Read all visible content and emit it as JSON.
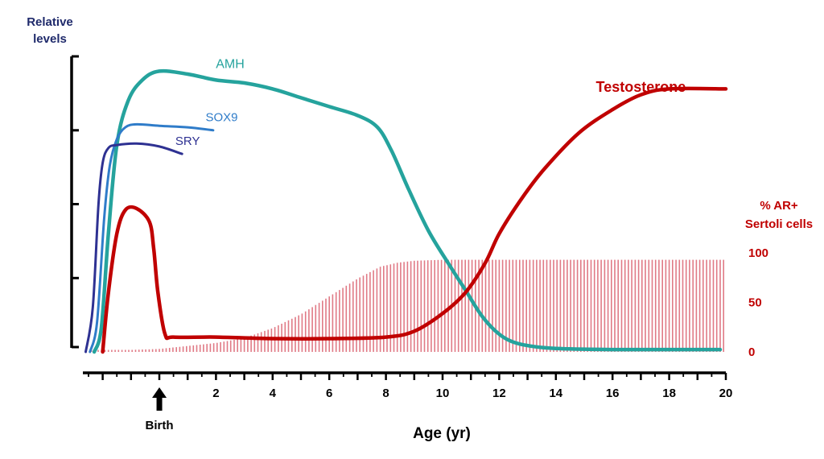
{
  "chart_data": {
    "type": "line",
    "title": "",
    "ylabel_lines": [
      "Relative",
      "levels"
    ],
    "xlabel": "Age (yr)",
    "x_ticks": [
      2,
      4,
      6,
      8,
      10,
      12,
      14,
      16,
      18,
      20
    ],
    "x_range": [
      -2.7,
      20
    ],
    "y_range_relative": [
      0,
      100
    ],
    "birth_label": "Birth",
    "birth_x": 0,
    "right_axis": {
      "label_lines": [
        "% AR+",
        "Sertoli cells"
      ],
      "ticks": [
        0,
        50,
        100
      ],
      "range": [
        0,
        100
      ]
    },
    "series": [
      {
        "name": "AMH",
        "color": "#25a39d",
        "label_at": [
          2.5,
          96
        ],
        "points": [
          [
            -2.3,
            0
          ],
          [
            -2.05,
            8
          ],
          [
            -1.8,
            40
          ],
          [
            -1.5,
            70
          ],
          [
            -1.1,
            85
          ],
          [
            -0.6,
            92
          ],
          [
            0,
            95
          ],
          [
            1,
            94
          ],
          [
            2,
            92
          ],
          [
            3,
            91
          ],
          [
            4,
            89
          ],
          [
            5,
            86
          ],
          [
            6,
            83
          ],
          [
            7,
            80
          ],
          [
            7.7,
            76
          ],
          [
            8.2,
            68
          ],
          [
            8.8,
            55
          ],
          [
            9.5,
            41
          ],
          [
            10.2,
            30
          ],
          [
            10.8,
            21
          ],
          [
            11.4,
            12
          ],
          [
            12,
            6
          ],
          [
            12.6,
            3
          ],
          [
            13.5,
            1.5
          ],
          [
            14.5,
            1
          ],
          [
            16,
            0.8
          ],
          [
            18,
            0.8
          ],
          [
            19.8,
            0.8
          ]
        ]
      },
      {
        "name": "SOX9",
        "color": "#2f7cc9",
        "label_at": [
          2.2,
          78
        ],
        "points": [
          [
            -2.45,
            0
          ],
          [
            -2.2,
            10
          ],
          [
            -1.95,
            45
          ],
          [
            -1.75,
            63
          ],
          [
            -1.5,
            72
          ],
          [
            -1.2,
            76
          ],
          [
            -0.8,
            77
          ],
          [
            0,
            76.5
          ],
          [
            1,
            76
          ],
          [
            1.9,
            75
          ]
        ]
      },
      {
        "name": "SRY",
        "color": "#2e3192",
        "label_at": [
          1.0,
          70
        ],
        "points": [
          [
            -2.6,
            0
          ],
          [
            -2.35,
            15
          ],
          [
            -2.15,
            50
          ],
          [
            -2.0,
            64
          ],
          [
            -1.8,
            69
          ],
          [
            -1.5,
            70
          ],
          [
            -0.8,
            70.5
          ],
          [
            0,
            69.5
          ],
          [
            0.8,
            67
          ]
        ]
      },
      {
        "name": "Testosterone",
        "color": "#c00000",
        "label_at": [
          17,
          88
        ],
        "points": [
          [
            -2.0,
            0
          ],
          [
            -1.8,
            20
          ],
          [
            -1.5,
            40
          ],
          [
            -1.2,
            48
          ],
          [
            -0.8,
            48.5
          ],
          [
            -0.35,
            44
          ],
          [
            -0.2,
            35
          ],
          [
            -0.05,
            20
          ],
          [
            0.2,
            6
          ],
          [
            0.5,
            5
          ],
          [
            2,
            5
          ],
          [
            4,
            4.5
          ],
          [
            6,
            4.5
          ],
          [
            8,
            5
          ],
          [
            9,
            7
          ],
          [
            10,
            13
          ],
          [
            10.8,
            20
          ],
          [
            11.5,
            30
          ],
          [
            12,
            40
          ],
          [
            12.8,
            52
          ],
          [
            13.6,
            62
          ],
          [
            14.8,
            74
          ],
          [
            16,
            82
          ],
          [
            17,
            87
          ],
          [
            18,
            89
          ],
          [
            20,
            89
          ]
        ]
      }
    ],
    "bars": {
      "name": "% AR+ Sertoli cells",
      "color": "#e07a86",
      "points": [
        [
          -2.4,
          2
        ],
        [
          -2,
          2
        ],
        [
          -1,
          2
        ],
        [
          0,
          3
        ],
        [
          1,
          6
        ],
        [
          2,
          9
        ],
        [
          3,
          14
        ],
        [
          4,
          24
        ],
        [
          5,
          38
        ],
        [
          6,
          56
        ],
        [
          7,
          74
        ],
        [
          7.8,
          86
        ],
        [
          8.4,
          90
        ],
        [
          9,
          92
        ],
        [
          10,
          93
        ],
        [
          12,
          93
        ],
        [
          15,
          93
        ],
        [
          20,
          93
        ]
      ]
    }
  }
}
